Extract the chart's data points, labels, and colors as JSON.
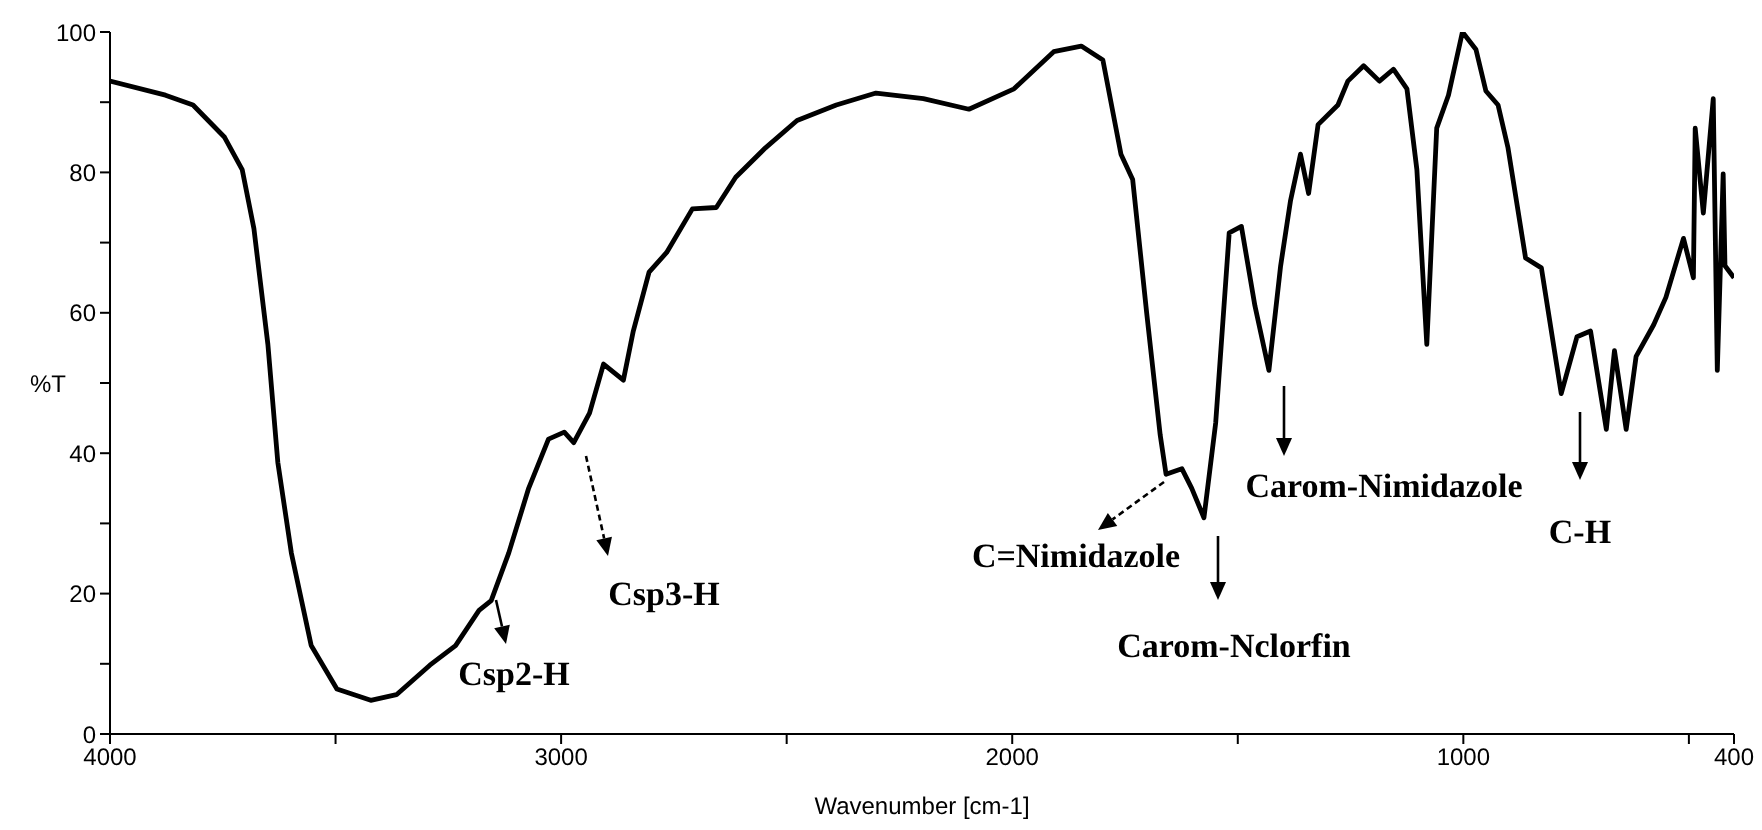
{
  "chart_data": {
    "type": "line",
    "xlabel": "Wavenumber [cm-1]",
    "ylabel": "%T",
    "xlim": [
      4000,
      400
    ],
    "xticks": [
      4000,
      {
        "value": 3500,
        "label": null
      },
      3000,
      {
        "value": 2500,
        "label": null
      },
      2000,
      {
        "value": 1500,
        "label": null
      },
      1000,
      {
        "value": 500,
        "label": null
      },
      400
    ],
    "ylim": [
      0,
      100
    ],
    "yticks": [
      0,
      {
        "value": 10,
        "label": null
      },
      20,
      {
        "value": 30,
        "label": null
      },
      40,
      {
        "value": 50,
        "label": null
      },
      60,
      {
        "value": 70,
        "label": null
      },
      80,
      {
        "value": 90,
        "label": null
      },
      100
    ],
    "grid": false,
    "marker": "none",
    "line_style": "solid",
    "series": [
      {
        "color": "#000000",
        "x": [
          4000,
          3877,
          3816,
          3746,
          3707,
          3681,
          3650,
          3628,
          3598,
          3554,
          3497,
          3422,
          3365,
          3291,
          3234,
          3182,
          3155,
          3116,
          3072,
          3028,
          2993,
          2972,
          2937,
          2906,
          2862,
          2840,
          2805,
          2766,
          2709,
          2656,
          2613,
          2547,
          2477,
          2390,
          2302,
          2197,
          2096,
          1996,
          1908,
          1847,
          1799,
          1759,
          1733,
          1702,
          1672,
          1659,
          1624,
          1602,
          1575,
          1549,
          1519,
          1492,
          1462,
          1431,
          1405,
          1383,
          1361,
          1343,
          1322,
          1278,
          1256,
          1221,
          1186,
          1155,
          1125,
          1103,
          1081,
          1059,
          1033,
          1002,
          972,
          950,
          923,
          901,
          862,
          827,
          783,
          748,
          718,
          683,
          665,
          639,
          617,
          578,
          551,
          512,
          490,
          486,
          468,
          446,
          437,
          424,
          420,
          400
        ],
        "values": [
          93,
          91,
          89.6,
          85,
          80.4,
          72,
          55.5,
          38.7,
          25.8,
          12.6,
          6.4,
          4.8,
          5.6,
          9.8,
          12.6,
          17.6,
          19,
          25.8,
          35,
          42,
          43,
          41.5,
          45.7,
          52.7,
          50.4,
          57.4,
          65.8,
          68.6,
          74.8,
          75,
          79.3,
          83.5,
          87.4,
          89.6,
          91.3,
          90.5,
          89,
          91.9,
          97.2,
          98,
          96,
          82.6,
          79,
          60,
          42.6,
          37,
          37.8,
          35,
          30.8,
          44.3,
          71.4,
          72.3,
          61,
          51.8,
          66.7,
          76,
          82.6,
          77,
          86.8,
          89.6,
          93,
          95.2,
          93,
          94.7,
          91.9,
          80.4,
          55.5,
          86.3,
          91,
          100,
          97.5,
          91.6,
          89.6,
          83.5,
          67.8,
          66.4,
          48.5,
          56.6,
          57.4,
          43.4,
          54.6,
          43.4,
          53.8,
          58.3,
          62.2,
          70.6,
          65,
          86.3,
          74.2,
          90.5,
          51.8,
          79.8,
          66.7,
          65
        ]
      }
    ],
    "annotations": [
      "Csp2-H",
      "Csp3-H",
      "C=Nimidazole",
      "Carom-Nclorfin",
      "Carom-Nimidazole",
      "C-H"
    ]
  }
}
